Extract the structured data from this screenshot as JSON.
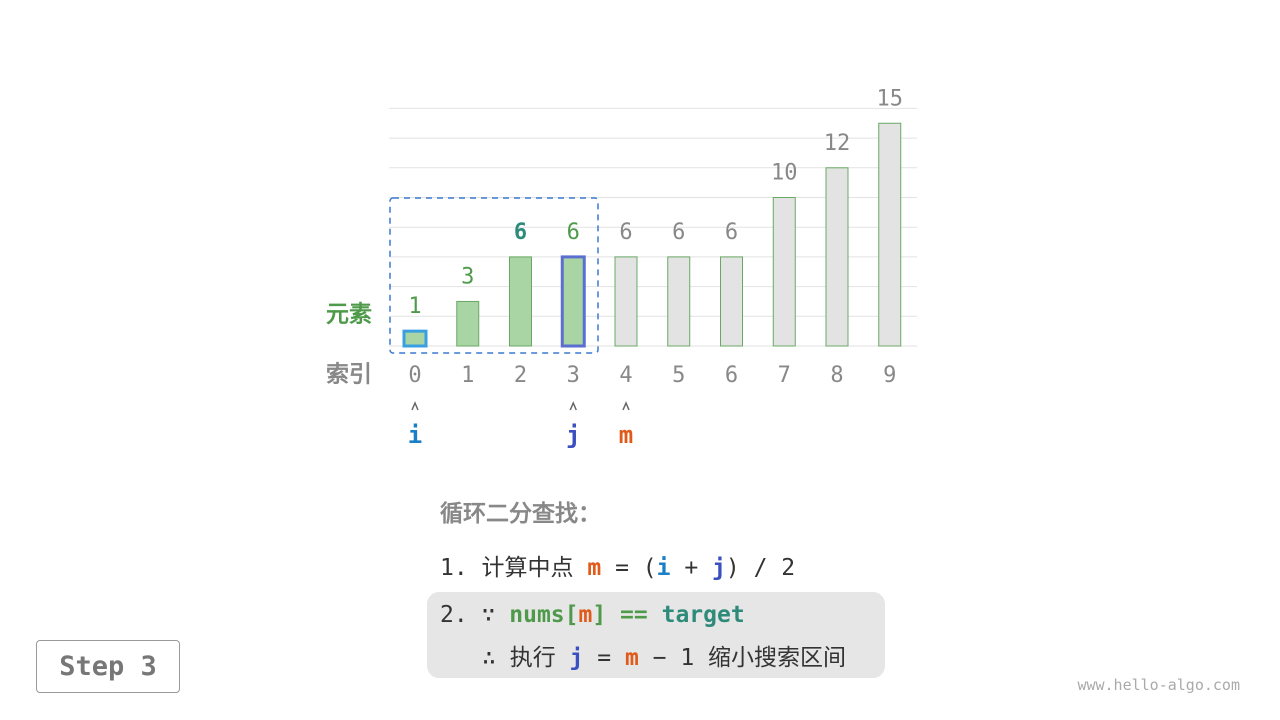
{
  "array": {
    "values_label": "元素",
    "indices_label": "索引",
    "values": [
      1,
      3,
      6,
      6,
      6,
      6,
      6,
      10,
      12,
      15
    ],
    "indices": [
      0,
      1,
      2,
      3,
      4,
      5,
      6,
      7,
      8,
      9
    ]
  },
  "pointers": [
    {
      "name": "i",
      "index": 0
    },
    {
      "name": "j",
      "index": 3
    },
    {
      "name": "m",
      "index": 4
    }
  ],
  "steps": {
    "title": "循环二分查找：",
    "line1": [
      "1. 计算中点 ",
      "m",
      " = (",
      "i",
      " + ",
      "j",
      ") / 2"
    ],
    "line2": [
      "2. ∵ ",
      "nums[",
      "m",
      "] == ",
      "target"
    ],
    "line3": [
      "∴ 执行 ",
      "j",
      " = ",
      "m",
      " − 1 缩小搜索区间"
    ]
  },
  "button": "Step 3",
  "watermark": "www.hello-algo.com"
}
